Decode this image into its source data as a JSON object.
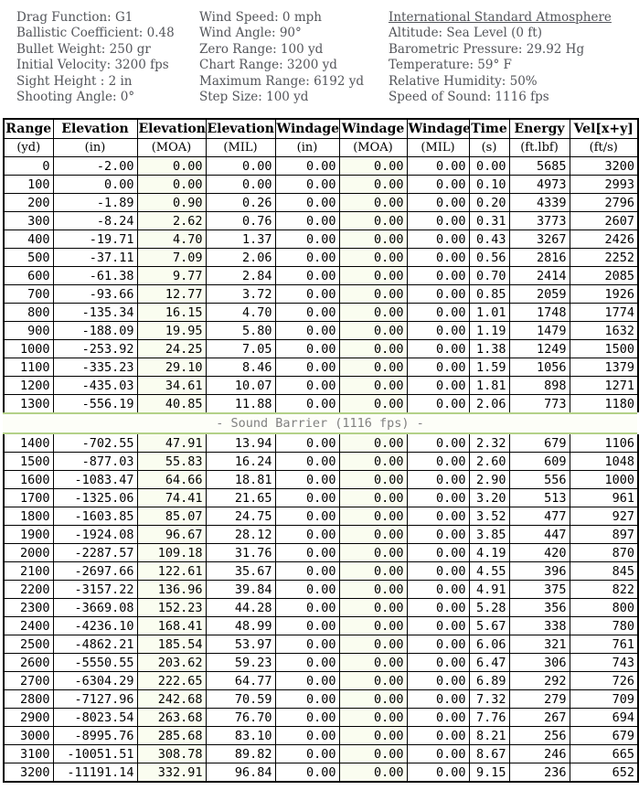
{
  "info": {
    "left": [
      "Drag Function: G1",
      "Ballistic Coefficient: 0.48",
      "Bullet Weight: 250 gr",
      "Initial Velocity: 3200 fps",
      "Sight Height : 2 in",
      "Shooting Angle: 0°"
    ],
    "middle": [
      "Wind Speed: 0 mph",
      "Wind Angle: 90°",
      "Zero Range: 100 yd",
      "Chart Range: 3200 yd",
      "Maximum Range: 6192 yd",
      "Step Size: 100 yd"
    ],
    "right_title": "International Standard Atmosphere",
    "right": [
      "Altitude: Sea Level (0 ft)",
      "Barometric Pressure: 29.92 Hg",
      "Temperature: 59° F",
      "Relative Humidity: 50%",
      "Speed of Sound: 1116 fps"
    ]
  },
  "table": {
    "columns": [
      {
        "name": "Range",
        "unit": "(yd)",
        "key": "range"
      },
      {
        "name": "Elevation",
        "unit": "(in)",
        "key": "elevation-in"
      },
      {
        "name": "Elevation",
        "unit": "(MOA)",
        "key": "elevation-moa"
      },
      {
        "name": "Elevation",
        "unit": "(MIL)",
        "key": "elevation-mil"
      },
      {
        "name": "Windage",
        "unit": "(in)",
        "key": "windage-in"
      },
      {
        "name": "Windage",
        "unit": "(MOA)",
        "key": "windage-moa"
      },
      {
        "name": "Windage",
        "unit": "(MIL)",
        "key": "windage-mil"
      },
      {
        "name": "Time",
        "unit": "(s)",
        "key": "time"
      },
      {
        "name": "Energy",
        "unit": "(ft.lbf)",
        "key": "energy"
      },
      {
        "name": "Vel[x+y]",
        "unit": "(ft/s)",
        "key": "velocity"
      }
    ],
    "rows_before_barrier": [
      [
        "0",
        "-2.00",
        "0.00",
        "0.00",
        "0.00",
        "0.00",
        "0.00",
        "0.00",
        "5685",
        "3200"
      ],
      [
        "100",
        "0.00",
        "0.00",
        "0.00",
        "0.00",
        "0.00",
        "0.00",
        "0.10",
        "4973",
        "2993"
      ],
      [
        "200",
        "-1.89",
        "0.90",
        "0.26",
        "0.00",
        "0.00",
        "0.00",
        "0.20",
        "4339",
        "2796"
      ],
      [
        "300",
        "-8.24",
        "2.62",
        "0.76",
        "0.00",
        "0.00",
        "0.00",
        "0.31",
        "3773",
        "2607"
      ],
      [
        "400",
        "-19.71",
        "4.70",
        "1.37",
        "0.00",
        "0.00",
        "0.00",
        "0.43",
        "3267",
        "2426"
      ],
      [
        "500",
        "-37.11",
        "7.09",
        "2.06",
        "0.00",
        "0.00",
        "0.00",
        "0.56",
        "2816",
        "2252"
      ],
      [
        "600",
        "-61.38",
        "9.77",
        "2.84",
        "0.00",
        "0.00",
        "0.00",
        "0.70",
        "2414",
        "2085"
      ],
      [
        "700",
        "-93.66",
        "12.77",
        "3.72",
        "0.00",
        "0.00",
        "0.00",
        "0.85",
        "2059",
        "1926"
      ],
      [
        "800",
        "-135.34",
        "16.15",
        "4.70",
        "0.00",
        "0.00",
        "0.00",
        "1.01",
        "1748",
        "1774"
      ],
      [
        "900",
        "-188.09",
        "19.95",
        "5.80",
        "0.00",
        "0.00",
        "0.00",
        "1.19",
        "1479",
        "1632"
      ],
      [
        "1000",
        "-253.92",
        "24.25",
        "7.05",
        "0.00",
        "0.00",
        "0.00",
        "1.38",
        "1249",
        "1500"
      ],
      [
        "1100",
        "-335.23",
        "29.10",
        "8.46",
        "0.00",
        "0.00",
        "0.00",
        "1.59",
        "1056",
        "1379"
      ],
      [
        "1200",
        "-435.03",
        "34.61",
        "10.07",
        "0.00",
        "0.00",
        "0.00",
        "1.81",
        "898",
        "1271"
      ],
      [
        "1300",
        "-556.19",
        "40.85",
        "11.88",
        "0.00",
        "0.00",
        "0.00",
        "2.06",
        "773",
        "1180"
      ]
    ],
    "barrier_label": "- Sound Barrier (1116 fps) -",
    "rows_after_barrier": [
      [
        "1400",
        "-702.55",
        "47.91",
        "13.94",
        "0.00",
        "0.00",
        "0.00",
        "2.32",
        "679",
        "1106"
      ],
      [
        "1500",
        "-877.03",
        "55.83",
        "16.24",
        "0.00",
        "0.00",
        "0.00",
        "2.60",
        "609",
        "1048"
      ],
      [
        "1600",
        "-1083.47",
        "64.66",
        "18.81",
        "0.00",
        "0.00",
        "0.00",
        "2.90",
        "556",
        "1000"
      ],
      [
        "1700",
        "-1325.06",
        "74.41",
        "21.65",
        "0.00",
        "0.00",
        "0.00",
        "3.20",
        "513",
        "961"
      ],
      [
        "1800",
        "-1603.85",
        "85.07",
        "24.75",
        "0.00",
        "0.00",
        "0.00",
        "3.52",
        "477",
        "927"
      ],
      [
        "1900",
        "-1924.08",
        "96.67",
        "28.12",
        "0.00",
        "0.00",
        "0.00",
        "3.85",
        "447",
        "897"
      ],
      [
        "2000",
        "-2287.57",
        "109.18",
        "31.76",
        "0.00",
        "0.00",
        "0.00",
        "4.19",
        "420",
        "870"
      ],
      [
        "2100",
        "-2697.66",
        "122.61",
        "35.67",
        "0.00",
        "0.00",
        "0.00",
        "4.55",
        "396",
        "845"
      ],
      [
        "2200",
        "-3157.22",
        "136.96",
        "39.84",
        "0.00",
        "0.00",
        "0.00",
        "4.91",
        "375",
        "822"
      ],
      [
        "2300",
        "-3669.08",
        "152.23",
        "44.28",
        "0.00",
        "0.00",
        "0.00",
        "5.28",
        "356",
        "800"
      ],
      [
        "2400",
        "-4236.10",
        "168.41",
        "48.99",
        "0.00",
        "0.00",
        "0.00",
        "5.67",
        "338",
        "780"
      ],
      [
        "2500",
        "-4862.21",
        "185.54",
        "53.97",
        "0.00",
        "0.00",
        "0.00",
        "6.06",
        "321",
        "761"
      ],
      [
        "2600",
        "-5550.55",
        "203.62",
        "59.23",
        "0.00",
        "0.00",
        "0.00",
        "6.47",
        "306",
        "743"
      ],
      [
        "2700",
        "-6304.29",
        "222.65",
        "64.77",
        "0.00",
        "0.00",
        "0.00",
        "6.89",
        "292",
        "726"
      ],
      [
        "2800",
        "-7127.96",
        "242.68",
        "70.59",
        "0.00",
        "0.00",
        "0.00",
        "7.32",
        "279",
        "709"
      ],
      [
        "2900",
        "-8023.54",
        "263.68",
        "76.70",
        "0.00",
        "0.00",
        "0.00",
        "7.76",
        "267",
        "694"
      ],
      [
        "3000",
        "-8995.76",
        "285.68",
        "83.10",
        "0.00",
        "0.00",
        "0.00",
        "8.21",
        "256",
        "679"
      ],
      [
        "3100",
        "-10051.51",
        "308.78",
        "89.82",
        "0.00",
        "0.00",
        "0.00",
        "8.67",
        "246",
        "665"
      ],
      [
        "3200",
        "-11191.14",
        "332.91",
        "96.84",
        "0.00",
        "0.00",
        "0.00",
        "9.15",
        "236",
        "652"
      ]
    ]
  },
  "colors": {
    "info_text": "#53555a",
    "table_border": "#000000",
    "moa_column_tint": "#fafdf0",
    "sound_barrier_accent": "#b3d188",
    "sound_barrier_text": "#808080"
  }
}
